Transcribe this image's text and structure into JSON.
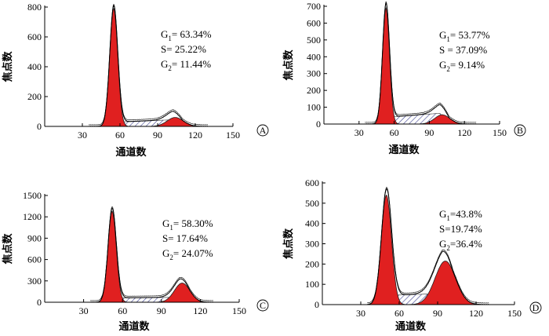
{
  "chart_data": [
    {
      "type": "area",
      "panel_label": "A",
      "xlabel": "通道数",
      "ylabel": "焦点数",
      "xlim": [
        0,
        150
      ],
      "ylim": [
        0,
        800
      ],
      "x_ticks": [
        30,
        60,
        90,
        120,
        150
      ],
      "y_ticks": [
        0,
        200,
        400,
        600,
        800
      ],
      "g1_peak": {
        "center": 55,
        "height": 790,
        "width": 3.2
      },
      "g2_peak": {
        "center": 104,
        "height": 60,
        "width": 6.5
      },
      "s_phase": {
        "start": 55,
        "end": 104,
        "level_start": 28,
        "level_end": 45
      },
      "stats": [
        {
          "label": "G",
          "sub": "1",
          "eq": "= ",
          "value": "63.34%"
        },
        {
          "label": "S",
          "sub": "",
          "eq": "= ",
          "value": "25.22%"
        },
        {
          "label": "G",
          "sub": "2",
          "eq": "= ",
          "value": "11.44%"
        }
      ]
    },
    {
      "type": "area",
      "panel_label": "B",
      "xlabel": "通道数",
      "ylabel": "焦点数",
      "xlim": [
        0,
        150
      ],
      "ylim": [
        0,
        700
      ],
      "x_ticks": [
        30,
        60,
        90,
        120,
        150
      ],
      "y_ticks": [
        0,
        100,
        200,
        300,
        400,
        500,
        600,
        700
      ],
      "g1_peak": {
        "center": 53,
        "height": 690,
        "width": 3.0
      },
      "g2_peak": {
        "center": 101,
        "height": 55,
        "width": 6.5
      },
      "s_phase": {
        "start": 53,
        "end": 101,
        "level_start": 40,
        "level_end": 65
      },
      "stats": [
        {
          "label": "G",
          "sub": "1",
          "eq": "= ",
          "value": "53.77%"
        },
        {
          "label": "S",
          "sub": "",
          "eq": " = ",
          "value": "37.09%"
        },
        {
          "label": "G",
          "sub": "2",
          "eq": "= ",
          "value": "9.14%"
        }
      ]
    },
    {
      "type": "area",
      "panel_label": "C",
      "xlabel": "通道数",
      "ylabel": "焦点数",
      "xlim": [
        0,
        150
      ],
      "ylim": [
        0,
        1500
      ],
      "x_ticks": [
        30,
        60,
        90,
        120,
        150
      ],
      "y_ticks": [
        0,
        300,
        600,
        900,
        1200,
        1500
      ],
      "g1_peak": {
        "center": 52,
        "height": 1280,
        "width": 3.2
      },
      "g2_peak": {
        "center": 106,
        "height": 270,
        "width": 6.0
      },
      "s_phase": {
        "start": 52,
        "end": 106,
        "level_start": 60,
        "level_end": 70
      },
      "stats": [
        {
          "label": "G",
          "sub": "1",
          "eq": "= ",
          "value": "58.30%"
        },
        {
          "label": "S",
          "sub": "",
          "eq": "= ",
          "value": "17.64%"
        },
        {
          "label": "G",
          "sub": "2",
          "eq": "= ",
          "value": "24.07%"
        }
      ]
    },
    {
      "type": "area",
      "panel_label": "D",
      "xlabel": "通道数",
      "ylabel": "焦点数",
      "xlim": [
        0,
        150
      ],
      "ylim": [
        0,
        600
      ],
      "x_ticks": [
        30,
        60,
        90,
        120,
        150
      ],
      "y_ticks": [
        0,
        100,
        200,
        300,
        400,
        500,
        600
      ],
      "g1_peak": {
        "center": 50,
        "height": 540,
        "width": 4.0
      },
      "g2_peak": {
        "center": 96,
        "height": 215,
        "width": 8.0
      },
      "s_phase": {
        "start": 50,
        "end": 96,
        "level_start": 45,
        "level_end": 55
      },
      "stats": [
        {
          "label": "G",
          "sub": "1",
          "eq": "=",
          "value": "43.8%"
        },
        {
          "label": "S",
          "sub": "",
          "eq": "=",
          "value": "19.74%"
        },
        {
          "label": "G",
          "sub": "2",
          "eq": "=",
          "value": "36.4%"
        }
      ]
    }
  ]
}
